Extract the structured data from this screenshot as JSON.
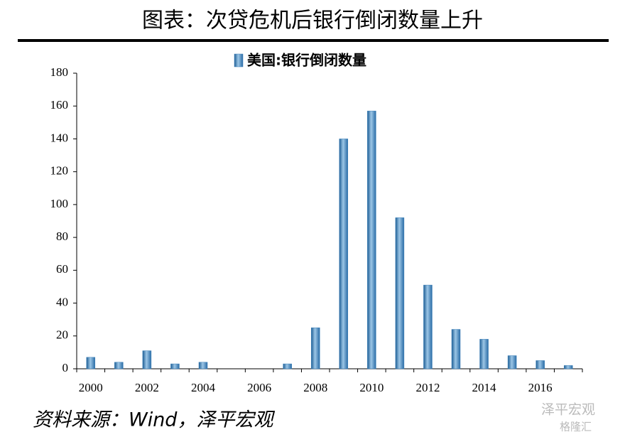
{
  "chart_data": {
    "type": "bar",
    "title": "图表：次贷危机后银行倒闭数量上升",
    "categories": [
      "2000",
      null,
      "2002",
      null,
      "2004",
      null,
      "2006",
      null,
      "2008",
      null,
      "2010",
      null,
      "2012",
      null,
      "2014",
      null,
      "2016",
      null
    ],
    "series": [
      {
        "name": "美国:银行倒闭数量",
        "color": "#3a7fb8",
        "values": [
          7,
          4,
          11,
          3,
          4,
          0,
          0,
          3,
          25,
          140,
          157,
          92,
          51,
          24,
          18,
          8,
          5,
          2
        ]
      }
    ],
    "ylim": [
      0,
      180
    ],
    "yticks": [
      0,
      20,
      40,
      60,
      80,
      100,
      120,
      140,
      160,
      180
    ],
    "grid": false,
    "legend": "top",
    "source": "资料来源：Wind，泽平宏观",
    "watermark": [
      "泽平宏观",
      "格隆汇"
    ]
  }
}
